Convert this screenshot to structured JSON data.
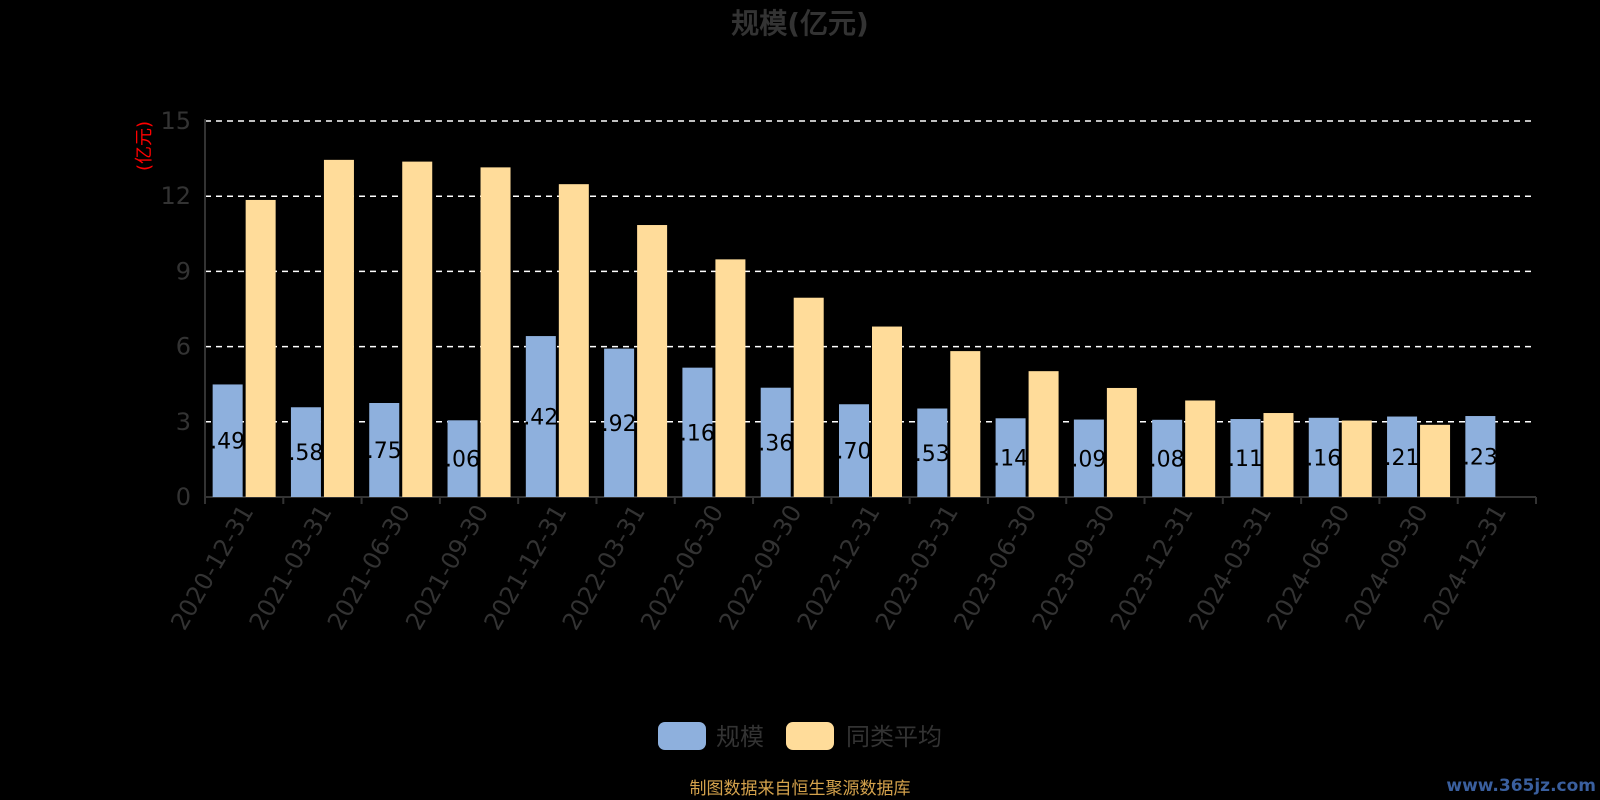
{
  "chart_data": {
    "type": "bar",
    "title": "规模(亿元)",
    "ylabel": "(亿元)",
    "ylim": [
      0,
      15
    ],
    "yticks": [
      0,
      3,
      6,
      9,
      12,
      15
    ],
    "grid": true,
    "legend_position": "bottom",
    "categories": [
      "2020-12-31",
      "2021-03-31",
      "2021-06-30",
      "2021-09-30",
      "2021-12-31",
      "2022-03-31",
      "2022-06-30",
      "2022-09-30",
      "2022-12-31",
      "2023-03-31",
      "2023-06-30",
      "2023-09-30",
      "2023-12-31",
      "2024-03-31",
      "2024-06-30",
      "2024-09-30",
      "2024-12-31"
    ],
    "series": [
      {
        "name": "规模",
        "color": "#8eb0dd",
        "values": [
          4.49,
          3.58,
          3.75,
          3.06,
          6.42,
          5.92,
          5.16,
          4.36,
          3.7,
          3.53,
          3.14,
          3.09,
          3.08,
          3.11,
          3.16,
          3.21,
          3.23
        ],
        "labels": [
          ".49",
          ".58",
          ".75",
          ".06",
          ".42",
          ".92",
          ".16",
          ".36",
          ".70",
          ".53",
          ".14",
          ".09",
          ".08",
          ".11",
          ".16",
          ".21",
          ".23"
        ]
      },
      {
        "name": "同类平均",
        "color": "#ffdc9a",
        "values": [
          11.85,
          13.45,
          13.38,
          13.15,
          12.48,
          10.85,
          9.48,
          7.95,
          6.8,
          5.82,
          5.02,
          4.35,
          3.85,
          3.35,
          3.05,
          2.88,
          null
        ]
      }
    ]
  },
  "footer": {
    "source": "制图数据来自恒生聚源数据库",
    "watermark": "www.365jz.com"
  }
}
